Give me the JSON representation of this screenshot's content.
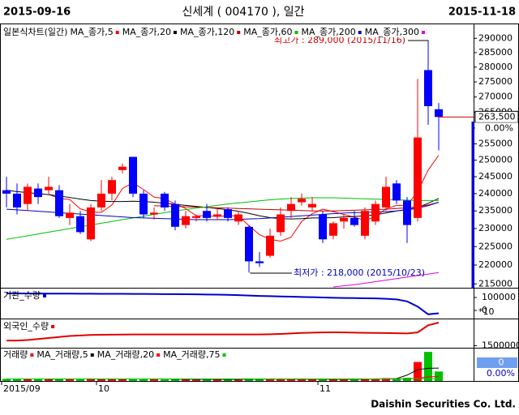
{
  "header": {
    "start": "2015-09-16",
    "title": "신세계 ( 004170 ), 일간",
    "end": "2015-11-18"
  },
  "footer": "Daishin Securities Co. Ltd.",
  "chart_data": [
    {
      "type": "candlestick",
      "title": "일본식차트(일간)",
      "log_scale": true,
      "up_color": "#ff0000",
      "down_color": "#0000ff",
      "categories": [
        "2015/09",
        null,
        null,
        null,
        null,
        null,
        null,
        null,
        null,
        "10",
        null,
        null,
        null,
        null,
        null,
        null,
        null,
        null,
        null,
        null,
        null,
        null,
        null,
        null,
        null,
        null,
        null,
        null,
        null,
        null,
        "11",
        null,
        null,
        null,
        null,
        null,
        null,
        null,
        null,
        null,
        null,
        null
      ],
      "open": [
        241000,
        240000,
        237000,
        241500,
        241000,
        241000,
        233000,
        233500,
        227000,
        236000,
        240000,
        247000,
        251000,
        240000,
        234000,
        240000,
        237000,
        231000,
        233000,
        235000,
        233500,
        235500,
        232000,
        230500,
        221000,
        222500,
        229000,
        235000,
        237500,
        236000,
        234000,
        228000,
        232000,
        233000,
        228000,
        232000,
        236000,
        243000,
        238000,
        233000,
        279000,
        266000
      ],
      "high": [
        245000,
        243000,
        243000,
        243000,
        245000,
        242500,
        237000,
        235000,
        237000,
        244000,
        245000,
        249000,
        251000,
        241000,
        236000,
        240500,
        238000,
        235000,
        234000,
        237000,
        236000,
        236000,
        235000,
        231000,
        223500,
        230000,
        236000,
        239000,
        240000,
        239000,
        235000,
        232000,
        234000,
        235000,
        236000,
        238000,
        245000,
        244000,
        239000,
        276000,
        289000,
        268000
      ],
      "low": [
        236000,
        234000,
        235000,
        237000,
        240000,
        233000,
        231000,
        228500,
        226500,
        235000,
        238000,
        246000,
        239000,
        233000,
        232500,
        235000,
        229500,
        230000,
        232000,
        232000,
        232500,
        232000,
        231000,
        218000,
        219500,
        222000,
        228000,
        233000,
        236500,
        235000,
        226000,
        227000,
        230000,
        230500,
        227000,
        231000,
        235000,
        237000,
        226000,
        232000,
        261000,
        253000
      ],
      "close": [
        240000,
        236000,
        242000,
        239000,
        242000,
        233500,
        234500,
        229000,
        236000,
        240000,
        244000,
        248000,
        240000,
        234000,
        234500,
        236000,
        230500,
        233500,
        233500,
        233000,
        234000,
        233000,
        234000,
        221000,
        220500,
        228000,
        234000,
        237000,
        238500,
        237000,
        227000,
        231500,
        233000,
        231000,
        235000,
        237000,
        242000,
        238000,
        231000,
        257000,
        267000,
        263500
      ],
      "series": [
        {
          "name": "MA_종가,5",
          "color": "#ff0000",
          "values": [
            null,
            null,
            null,
            null,
            239800,
            238600,
            238300,
            235600,
            234700,
            234600,
            236700,
            241500,
            243200,
            241200,
            239000,
            238500,
            237000,
            235700,
            233600,
            233600,
            233400,
            233600,
            233600,
            230800,
            228300,
            227000,
            226500,
            227600,
            232000,
            234200,
            235500,
            234800,
            234000,
            233200,
            232300,
            233400,
            235600,
            236600,
            236600,
            240600,
            247000,
            251500
          ]
        },
        {
          "name": "MA_종가,20",
          "color": "#000000",
          "values": [
            241000,
            240600,
            240300,
            240000,
            239700,
            239300,
            238900,
            238400,
            238000,
            237800,
            237700,
            237700,
            237800,
            237700,
            237500,
            237200,
            236900,
            236600,
            236300,
            236000,
            235700,
            235300,
            234900,
            234300,
            233600,
            233100,
            232800,
            232700,
            232800,
            233000,
            233000,
            233100,
            233300,
            233400,
            233600,
            233900,
            234400,
            235000,
            235400,
            236000,
            237200,
            238600
          ]
        },
        {
          "name": "MA_종가,120",
          "color": "#c00000",
          "values": [
            null,
            null,
            null,
            null,
            null,
            null,
            null,
            null,
            null,
            null,
            null,
            null,
            null,
            null,
            236500,
            236400,
            236300,
            236200,
            236100,
            236000,
            235900,
            235800,
            235700,
            235600,
            235500,
            235400,
            235300,
            235200,
            235100,
            235000,
            235000,
            235000,
            235100,
            235200,
            235300,
            235400,
            235500,
            235700,
            235900,
            236200,
            236700,
            237500
          ]
        },
        {
          "name": "MA_종가,60",
          "color": "#00c000",
          "values": [
            227000,
            227500,
            228000,
            228500,
            229000,
            229500,
            230000,
            230500,
            231000,
            231500,
            232000,
            232500,
            233000,
            233500,
            234000,
            234500,
            235000,
            235400,
            235800,
            236200,
            236600,
            237000,
            237300,
            237600,
            237900,
            238200,
            238400,
            238600,
            238700,
            238800,
            238800,
            238800,
            238700,
            238600,
            238500,
            238400,
            238300,
            238200,
            238100,
            238000,
            238000,
            238000
          ]
        },
        {
          "name": "MA_종가,200",
          "color": "#0000cc",
          "values": [
            235500,
            235300,
            235100,
            234900,
            234700,
            234500,
            234300,
            234100,
            233900,
            233700,
            233500,
            233300,
            233100,
            233000,
            232900,
            232800,
            232700,
            232600,
            232500,
            232500,
            232500,
            232500,
            232600,
            232700,
            232800,
            233000,
            233200,
            233400,
            233600,
            233800,
            234000,
            234200,
            234400,
            234500,
            234600,
            234700,
            234800,
            235000,
            235300,
            235800,
            236500,
            237500
          ]
        },
        {
          "name": "MA_종가,300",
          "color": "#e000e0",
          "values": [
            null,
            null,
            null,
            null,
            null,
            null,
            null,
            null,
            null,
            null,
            null,
            null,
            null,
            null,
            null,
            null,
            null,
            null,
            null,
            null,
            null,
            null,
            null,
            null,
            null,
            null,
            null,
            null,
            null,
            null,
            null,
            214200,
            214500,
            214800,
            215200,
            215600,
            216000,
            216400,
            216800,
            217200,
            217600,
            218000
          ]
        }
      ],
      "ylim": [
        214000,
        295000
      ],
      "yticks": [
        215000,
        220000,
        225000,
        230000,
        235000,
        240000,
        245000,
        250000,
        255000,
        260000,
        265000,
        270000,
        275000,
        280000,
        285000,
        290000
      ],
      "high_label": "최고가 : 289,000 (2015/11/16)",
      "low_label": "최저가 : 218,000 (2015/10/23)",
      "last_price": {
        "value": 263500,
        "label": "263,500"
      },
      "change_label": "0.00%"
    },
    {
      "type": "line",
      "series": [
        {
          "name": "기관_수량",
          "color": "#0000cc",
          "values": [
            131000,
            131000,
            130500,
            130500,
            130000,
            130000,
            129500,
            129000,
            129000,
            128500,
            128000,
            128000,
            127500,
            127000,
            126500,
            126000,
            125500,
            125000,
            124000,
            123000,
            122000,
            120000,
            118000,
            115000,
            112000,
            110000,
            108000,
            106000,
            104000,
            102000,
            100000,
            98000,
            96000,
            95000,
            94000,
            93000,
            90000,
            85000,
            70000,
            30000,
            -30000,
            -22000
          ]
        }
      ],
      "ylim": [
        -62500,
        162500
      ],
      "yticks": [
        100000,
        0
      ],
      "unit_label": "*10"
    },
    {
      "type": "line",
      "series": [
        {
          "name": "외국인_수량",
          "color": "#e00000",
          "values": [
            2000000,
            2000000,
            2050000,
            2150000,
            2250000,
            2350000,
            2450000,
            2500000,
            2550000,
            2570000,
            2580000,
            2590000,
            2600000,
            2600000,
            2600000,
            2600000,
            2600000,
            2600000,
            2600000,
            2600000,
            2600000,
            2600000,
            2600000,
            2600000,
            2600000,
            2620000,
            2650000,
            2700000,
            2750000,
            2780000,
            2800000,
            2810000,
            2800000,
            2780000,
            2760000,
            2750000,
            2740000,
            2720000,
            2700000,
            2800000,
            3500000,
            3760000
          ]
        }
      ],
      "ylim": [
        1300000,
        4000000
      ],
      "yticks": [
        1500000
      ]
    },
    {
      "type": "bar",
      "title": "거래량",
      "up_color": "#ff0000",
      "down_color": "#00c000",
      "values": [
        100000,
        90000,
        80000,
        90000,
        80000,
        110000,
        90000,
        100000,
        120000,
        90000,
        80000,
        90000,
        110000,
        100000,
        80000,
        70000,
        90000,
        80000,
        70000,
        70000,
        80000,
        70000,
        70000,
        120000,
        100000,
        110000,
        90000,
        90000,
        80000,
        80000,
        100000,
        80000,
        70000,
        70000,
        90000,
        90000,
        130000,
        120000,
        150000,
        900000,
        1380000,
        450000
      ],
      "series": [
        {
          "name": "MA_거래량,5",
          "color": "#000000",
          "values": [
            null,
            null,
            null,
            null,
            88000,
            90000,
            94000,
            98000,
            98000,
            96000,
            96000,
            96000,
            94000,
            94000,
            96000,
            94000,
            86000,
            82000,
            82000,
            76000,
            76000,
            74000,
            78000,
            82000,
            88000,
            94000,
            98000,
            98000,
            92000,
            88000,
            88000,
            84000,
            80000,
            80000,
            88000,
            94000,
            104000,
            112000,
            278000,
            536000,
            600000,
            610000
          ]
        },
        {
          "name": "MA_거래량,20",
          "color": "#ff0000",
          "values": [
            null,
            null,
            null,
            null,
            null,
            null,
            null,
            null,
            null,
            null,
            null,
            null,
            null,
            null,
            null,
            null,
            null,
            null,
            null,
            92000,
            91000,
            90000,
            90000,
            89000,
            89000,
            88000,
            88000,
            88000,
            87000,
            87000,
            87000,
            87000,
            87000,
            88000,
            88000,
            89000,
            90000,
            92000,
            95000,
            130000,
            190000,
            210000
          ]
        },
        {
          "name": "MA_거래량,75",
          "color": "#00c000",
          "values": [
            95000,
            95000,
            95000,
            95000,
            95000,
            95000,
            95000,
            95000,
            95000,
            95000,
            95000,
            95000,
            95000,
            95000,
            95000,
            95000,
            95000,
            95000,
            95000,
            95000,
            95000,
            95000,
            95000,
            95000,
            95000,
            95000,
            95000,
            95000,
            95000,
            95000,
            96000,
            96000,
            96000,
            97000,
            97000,
            98000,
            99000,
            100000,
            102000,
            105000,
            108000,
            110000
          ]
        }
      ],
      "ylim": [
        0,
        1500000
      ],
      "current_label": "0",
      "change_label": "0.00%"
    }
  ]
}
